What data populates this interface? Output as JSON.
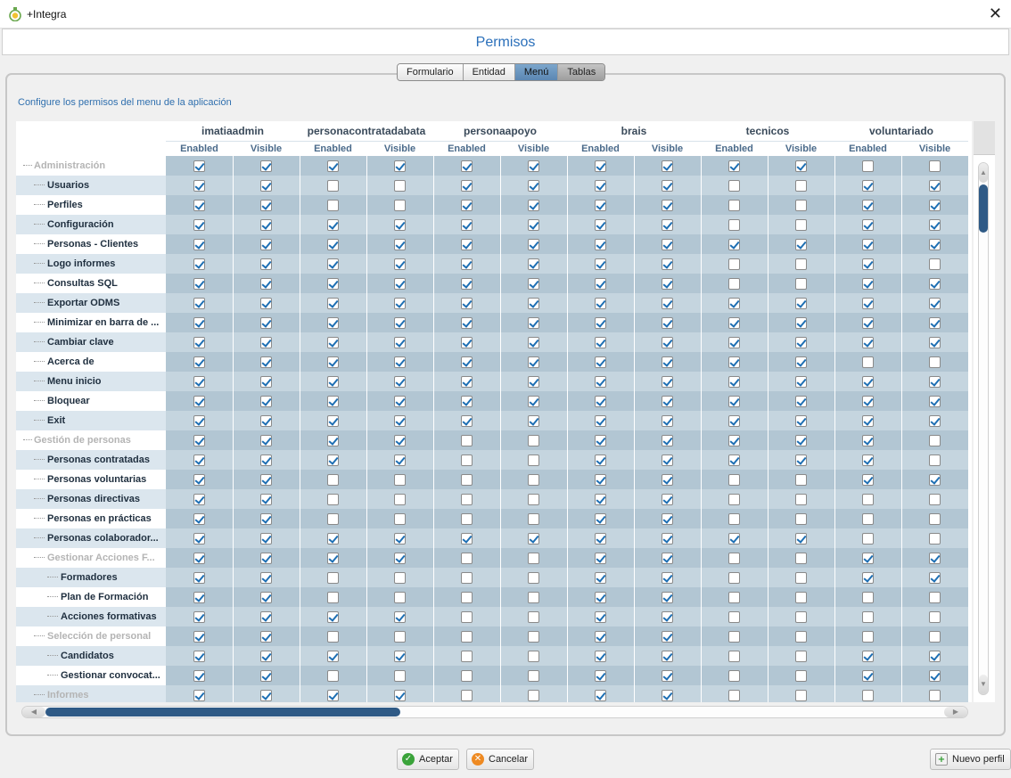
{
  "window": {
    "title": "+Integra"
  },
  "header": {
    "title": "Permisos"
  },
  "tabs": [
    {
      "label": "Formulario",
      "state": "normal"
    },
    {
      "label": "Entidad",
      "state": "normal"
    },
    {
      "label": "Menú",
      "state": "active"
    },
    {
      "label": "Tablas",
      "state": "dark"
    }
  ],
  "subtitle": "Configure los permisos del menu de la aplicación",
  "grid": {
    "roles": [
      "imatiaadmin",
      "personacontratadabata",
      "personaapoyo",
      "brais",
      "tecnicos",
      "voluntariado"
    ],
    "subcolumns": [
      "Enabled",
      "Visible"
    ],
    "rows": [
      {
        "name": "Administración",
        "level": 0,
        "grey": true,
        "perms": [
          1,
          1,
          1,
          1,
          1,
          1,
          1,
          1,
          1,
          1,
          0,
          0
        ]
      },
      {
        "name": "Usuarios",
        "level": 1,
        "grey": false,
        "perms": [
          1,
          1,
          0,
          0,
          1,
          1,
          1,
          1,
          0,
          0,
          1,
          1
        ]
      },
      {
        "name": "Perfiles",
        "level": 1,
        "grey": false,
        "perms": [
          1,
          1,
          0,
          0,
          1,
          1,
          1,
          1,
          0,
          0,
          1,
          1
        ]
      },
      {
        "name": "Configuración",
        "level": 1,
        "grey": false,
        "perms": [
          1,
          1,
          1,
          1,
          1,
          1,
          1,
          1,
          0,
          0,
          1,
          1
        ]
      },
      {
        "name": "Personas - Clientes",
        "level": 1,
        "grey": false,
        "perms": [
          1,
          1,
          1,
          1,
          1,
          1,
          1,
          1,
          1,
          1,
          1,
          1
        ]
      },
      {
        "name": "Logo informes",
        "level": 1,
        "grey": false,
        "perms": [
          1,
          1,
          1,
          1,
          1,
          1,
          1,
          1,
          0,
          0,
          1,
          0
        ]
      },
      {
        "name": "Consultas SQL",
        "level": 1,
        "grey": false,
        "perms": [
          1,
          1,
          1,
          1,
          1,
          1,
          1,
          1,
          0,
          0,
          1,
          1
        ]
      },
      {
        "name": "Exportar ODMS",
        "level": 1,
        "grey": false,
        "perms": [
          1,
          1,
          1,
          1,
          1,
          1,
          1,
          1,
          1,
          1,
          1,
          1
        ]
      },
      {
        "name": "Minimizar en barra de ...",
        "level": 1,
        "grey": false,
        "perms": [
          1,
          1,
          1,
          1,
          1,
          1,
          1,
          1,
          1,
          1,
          1,
          1
        ]
      },
      {
        "name": "Cambiar clave",
        "level": 1,
        "grey": false,
        "perms": [
          1,
          1,
          1,
          1,
          1,
          1,
          1,
          1,
          1,
          1,
          1,
          1
        ]
      },
      {
        "name": "Acerca de",
        "level": 1,
        "grey": false,
        "perms": [
          1,
          1,
          1,
          1,
          1,
          1,
          1,
          1,
          1,
          1,
          0,
          0
        ]
      },
      {
        "name": "Menu inicio",
        "level": 1,
        "grey": false,
        "perms": [
          1,
          1,
          1,
          1,
          1,
          1,
          1,
          1,
          1,
          1,
          1,
          1
        ]
      },
      {
        "name": "Bloquear",
        "level": 1,
        "grey": false,
        "perms": [
          1,
          1,
          1,
          1,
          1,
          1,
          1,
          1,
          1,
          1,
          1,
          1
        ]
      },
      {
        "name": "Exit",
        "level": 1,
        "grey": false,
        "perms": [
          1,
          1,
          1,
          1,
          1,
          1,
          1,
          1,
          1,
          1,
          1,
          1
        ]
      },
      {
        "name": "Gestión de personas",
        "level": 0,
        "grey": true,
        "perms": [
          1,
          1,
          1,
          1,
          0,
          0,
          1,
          1,
          1,
          1,
          1,
          0
        ]
      },
      {
        "name": "Personas contratadas",
        "level": 1,
        "grey": false,
        "perms": [
          1,
          1,
          1,
          1,
          0,
          0,
          1,
          1,
          1,
          1,
          1,
          0
        ]
      },
      {
        "name": "Personas voluntarias",
        "level": 1,
        "grey": false,
        "perms": [
          1,
          1,
          0,
          0,
          0,
          0,
          1,
          1,
          0,
          0,
          1,
          1
        ]
      },
      {
        "name": "Personas directivas",
        "level": 1,
        "grey": false,
        "perms": [
          1,
          1,
          0,
          0,
          0,
          0,
          1,
          1,
          0,
          0,
          0,
          0
        ]
      },
      {
        "name": "Personas en prácticas",
        "level": 1,
        "grey": false,
        "perms": [
          1,
          1,
          0,
          0,
          0,
          0,
          1,
          1,
          0,
          0,
          0,
          0
        ]
      },
      {
        "name": "Personas colaborador...",
        "level": 1,
        "grey": false,
        "perms": [
          1,
          1,
          1,
          1,
          1,
          1,
          1,
          1,
          1,
          1,
          0,
          0
        ]
      },
      {
        "name": "Gestionar Acciones F...",
        "level": 1,
        "grey": true,
        "perms": [
          1,
          1,
          1,
          1,
          0,
          0,
          1,
          1,
          0,
          0,
          1,
          1
        ]
      },
      {
        "name": "Formadores",
        "level": 2,
        "grey": false,
        "perms": [
          1,
          1,
          0,
          0,
          0,
          0,
          1,
          1,
          0,
          0,
          1,
          1
        ]
      },
      {
        "name": "Plan de Formación",
        "level": 2,
        "grey": false,
        "perms": [
          1,
          1,
          0,
          0,
          0,
          0,
          1,
          1,
          0,
          0,
          0,
          0
        ]
      },
      {
        "name": "Acciones formativas",
        "level": 2,
        "grey": false,
        "perms": [
          1,
          1,
          1,
          1,
          0,
          0,
          1,
          1,
          0,
          0,
          0,
          0
        ]
      },
      {
        "name": "Selección de personal",
        "level": 1,
        "grey": true,
        "perms": [
          1,
          1,
          0,
          0,
          0,
          0,
          1,
          1,
          0,
          0,
          0,
          0
        ]
      },
      {
        "name": "Candidatos",
        "level": 2,
        "grey": false,
        "perms": [
          1,
          1,
          1,
          1,
          0,
          0,
          1,
          1,
          0,
          0,
          1,
          1
        ]
      },
      {
        "name": "Gestionar convocat...",
        "level": 2,
        "grey": false,
        "perms": [
          1,
          1,
          0,
          0,
          0,
          0,
          1,
          1,
          0,
          0,
          1,
          1
        ]
      },
      {
        "name": "Informes",
        "level": 1,
        "grey": true,
        "perms": [
          1,
          1,
          1,
          1,
          0,
          0,
          1,
          1,
          0,
          0,
          0,
          0
        ]
      }
    ]
  },
  "buttons": {
    "accept": "Aceptar",
    "cancel": "Cancelar",
    "new_profile": "Nuevo perfil"
  },
  "icons": {
    "app": "app-logo-icon",
    "close": "close-icon",
    "accept": "check-circle-icon",
    "cancel": "cancel-circle-icon",
    "new_profile": "add-document-icon"
  },
  "colors": {
    "accent": "#2a6fba",
    "cell_bg": "#b2c6d3",
    "checkmark": "#1e6fb3",
    "scroll_thumb": "#2f5a86"
  }
}
